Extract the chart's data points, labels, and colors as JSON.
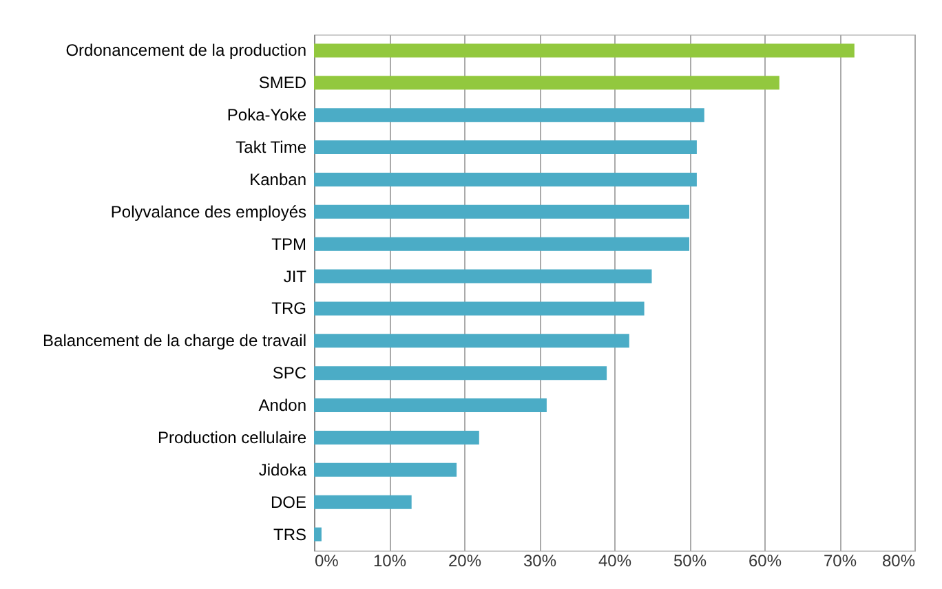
{
  "chart_data": {
    "type": "bar",
    "orientation": "horizontal",
    "categories": [
      "Ordonancement de la production",
      "SMED",
      "Poka-Yoke",
      "Takt Time",
      "Kanban",
      "Polyvalance des employés",
      "TPM",
      "JIT",
      "TRG",
      "Balancement de la charge de travail",
      "SPC",
      "Andon",
      "Production cellulaire",
      "Jidoka",
      "DOE",
      "TRS"
    ],
    "values": [
      72,
      62,
      52,
      51,
      51,
      50,
      50,
      45,
      44,
      42,
      39,
      31,
      22,
      19,
      13,
      1
    ],
    "colors": [
      "#92c83e",
      "#92c83e",
      "#4bacc6",
      "#4bacc6",
      "#4bacc6",
      "#4bacc6",
      "#4bacc6",
      "#4bacc6",
      "#4bacc6",
      "#4bacc6",
      "#4bacc6",
      "#4bacc6",
      "#4bacc6",
      "#4bacc6",
      "#4bacc6",
      "#4bacc6"
    ],
    "xlim": [
      0,
      80
    ],
    "xticks": [
      {
        "value": 0,
        "label": "0%"
      },
      {
        "value": 10,
        "label": "10%"
      },
      {
        "value": 20,
        "label": "20%"
      },
      {
        "value": 30,
        "label": "30%"
      },
      {
        "value": 40,
        "label": "40%"
      },
      {
        "value": 50,
        "label": "50%"
      },
      {
        "value": 60,
        "label": "60%"
      },
      {
        "value": 70,
        "label": "70%"
      },
      {
        "value": 80,
        "label": "80%"
      }
    ],
    "grid": "x"
  }
}
